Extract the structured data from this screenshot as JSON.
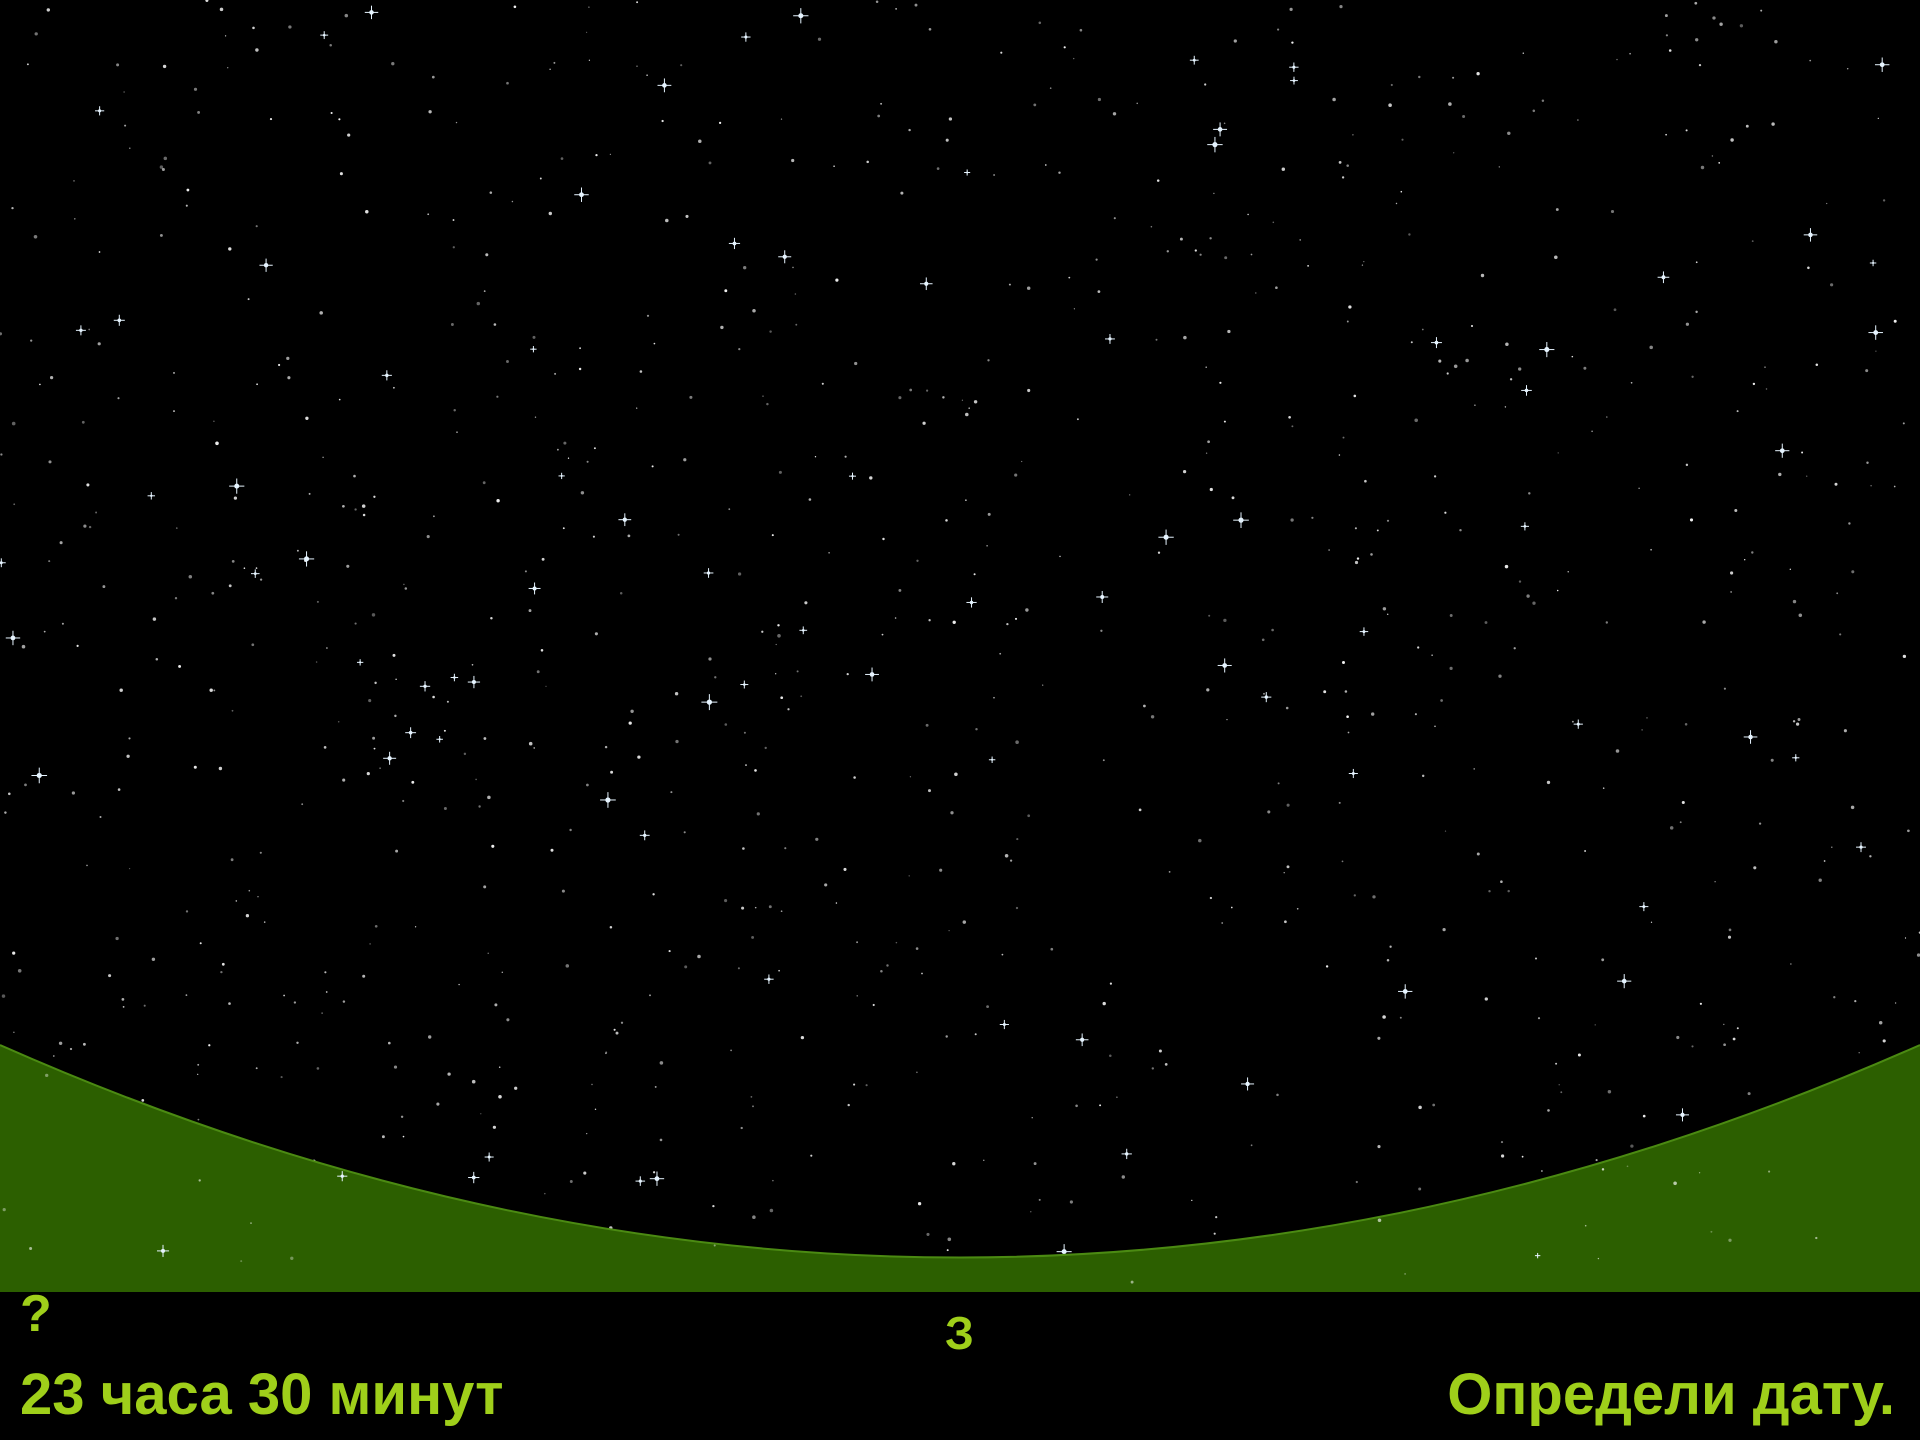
{
  "labels": {
    "question_mark": "?",
    "direction": "З",
    "time": "23 часа 30 минут",
    "task": "Определи дату."
  },
  "colors": {
    "sky": "#000000",
    "ground": "#2c5f00",
    "horizon_edge": "#4b8a12",
    "text": "#9fcf1a",
    "star": "#ffffff",
    "star_bright": "#e6f4ff"
  }
}
